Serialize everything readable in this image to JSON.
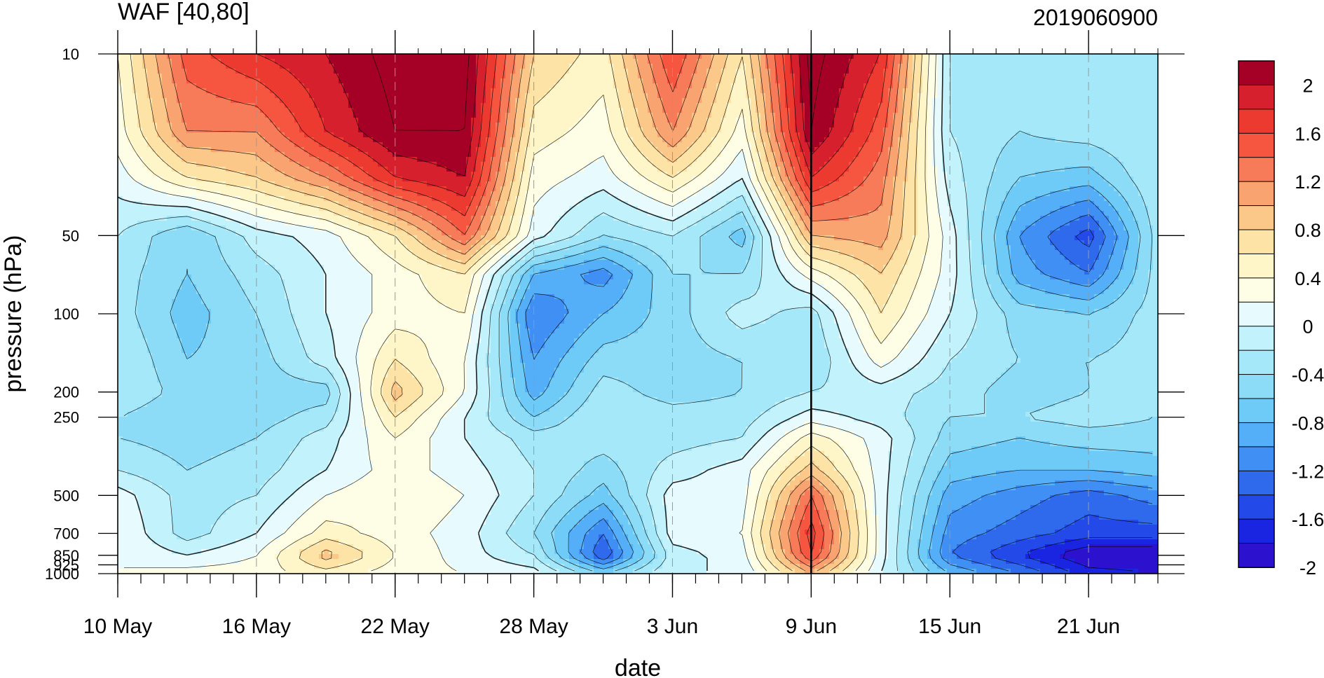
{
  "chart_data": {
    "type": "heatmap",
    "subtype": "filled-contour time-pressure section",
    "title": "WAF [40,80]",
    "right_title": "2019060900",
    "xlabel": "date",
    "ylabel": "pressure (hPa)",
    "x_tick_labels": [
      "10 May",
      "16 May",
      "22 May",
      "28 May",
      "3 Jun",
      "9 Jun",
      "15 Jun",
      "21 Jun"
    ],
    "x_tick_dates": [
      "2019-05-10",
      "2019-05-16",
      "2019-05-22",
      "2019-05-28",
      "2019-06-03",
      "2019-06-09",
      "2019-06-15",
      "2019-06-21"
    ],
    "x_range": [
      "2019-05-10",
      "2019-06-24"
    ],
    "y_tick_labels": [
      "10",
      "50",
      "100",
      "200",
      "250",
      "500",
      "700",
      "850",
      "925",
      "1000"
    ],
    "y_tick_values": [
      10,
      50,
      100,
      200,
      250,
      500,
      700,
      850,
      925,
      1000
    ],
    "y_range": [
      1000,
      10
    ],
    "y_scale": "log (pressure, top = 10 hPa)",
    "analysis_date_marker": "2019-06-09",
    "colorbar": {
      "labels": [
        "2",
        "1.6",
        "1.2",
        "0.8",
        "0.4",
        "0",
        "-0.4",
        "-0.8",
        "-1.2",
        "-1.6",
        "-2"
      ],
      "label_values": [
        2,
        1.6,
        1.2,
        0.8,
        0.4,
        0,
        -0.4,
        -0.8,
        -1.2,
        -1.6,
        -2
      ],
      "levels": [
        2.2,
        2.0,
        1.8,
        1.6,
        1.4,
        1.2,
        1.0,
        0.8,
        0.6,
        0.4,
        0.2,
        0,
        -0.2,
        -0.4,
        -0.6,
        -0.8,
        -1.0,
        -1.2,
        -1.4,
        -1.6,
        -1.8,
        -2.0,
        -2.2
      ],
      "colors": [
        "#a50026",
        "#d6202e",
        "#ec3a31",
        "#f6553f",
        "#f77b58",
        "#f9a371",
        "#fcc88a",
        "#fde3a6",
        "#fef6c9",
        "#fefde6",
        "#e7fafd",
        "#c2f2fb",
        "#a5e8f9",
        "#8cdcf7",
        "#6ecaf6",
        "#54aef8",
        "#3f8ff4",
        "#2f6aed",
        "#234ae8",
        "#1a25e1",
        "#2c11cf"
      ]
    },
    "field": {
      "description": "approximate WAF values digitised from the plotted contours",
      "dates": [
        "2019-05-10",
        "2019-05-13",
        "2019-05-16",
        "2019-05-19",
        "2019-05-22",
        "2019-05-25",
        "2019-05-28",
        "2019-05-31",
        "2019-06-03",
        "2019-06-06",
        "2019-06-09",
        "2019-06-12",
        "2019-06-15",
        "2019-06-18",
        "2019-06-21",
        "2019-06-24"
      ],
      "pressure_levels": [
        10,
        20,
        30,
        50,
        70,
        100,
        150,
        200,
        250,
        300,
        400,
        500,
        700,
        850,
        1000
      ],
      "values": [
        [
          0.4,
          1.5,
          1.8,
          2.0,
          2.3,
          2.3,
          0.8,
          0.5,
          1.6,
          0.6,
          2.3,
          1.8,
          -0.2,
          -0.3,
          -0.2,
          -0.2
        ],
        [
          0.3,
          1.2,
          1.2,
          1.8,
          2.2,
          2.2,
          0.5,
          0.3,
          1.2,
          0.3,
          2.2,
          1.5,
          -0.2,
          -0.4,
          -0.3,
          -0.2
        ],
        [
          0.1,
          0.6,
          0.8,
          1.2,
          1.8,
          2.0,
          0.3,
          0.1,
          0.6,
          0.0,
          1.8,
          1.3,
          -0.1,
          -0.6,
          -0.7,
          -0.2
        ],
        [
          -0.2,
          -0.6,
          -0.1,
          0.1,
          0.6,
          1.4,
          0.1,
          -0.4,
          -0.2,
          -0.7,
          1.0,
          1.1,
          0.1,
          -1.0,
          -1.5,
          -0.3
        ],
        [
          -0.3,
          -0.6,
          -0.3,
          0.0,
          0.3,
          0.6,
          -0.8,
          -1.1,
          -0.4,
          -0.4,
          0.3,
          0.8,
          0.1,
          -0.9,
          -1.2,
          -0.3
        ],
        [
          -0.3,
          -0.7,
          -0.4,
          0.0,
          0.3,
          0.4,
          -1.2,
          -0.8,
          -0.5,
          -0.1,
          -0.3,
          0.6,
          0.0,
          -0.5,
          -0.6,
          -0.3
        ],
        [
          -0.2,
          -0.6,
          -0.5,
          -0.1,
          0.6,
          0.2,
          -1.0,
          -0.5,
          -0.5,
          -0.4,
          -0.4,
          0.3,
          -0.2,
          -0.4,
          -0.4,
          -0.3
        ],
        [
          -0.2,
          -0.5,
          -0.5,
          -0.5,
          0.9,
          0.2,
          -0.9,
          -0.3,
          -0.5,
          -0.4,
          -0.2,
          -0.1,
          -0.3,
          -0.5,
          -0.4,
          -0.4
        ],
        [
          -0.4,
          -0.6,
          -0.5,
          -0.3,
          0.6,
          0.0,
          -0.6,
          -0.2,
          -0.3,
          -0.3,
          0.1,
          -0.1,
          -0.4,
          -0.4,
          -0.3,
          -0.4
        ],
        [
          -0.4,
          -0.5,
          -0.4,
          -0.1,
          0.4,
          0.0,
          -0.3,
          -0.3,
          -0.3,
          -0.2,
          0.5,
          0.1,
          -0.5,
          -0.6,
          -0.5,
          -0.5
        ],
        [
          -0.2,
          -0.4,
          -0.3,
          0.0,
          0.3,
          0.1,
          -0.2,
          -0.5,
          -0.1,
          0.1,
          0.9,
          0.1,
          -0.7,
          -0.8,
          -0.8,
          -0.7
        ],
        [
          0.1,
          -0.3,
          -0.2,
          0.2,
          0.4,
          0.2,
          -0.2,
          -0.7,
          0.1,
          0.1,
          1.4,
          0.1,
          -0.9,
          -1.1,
          -1.3,
          -1.1
        ],
        [
          0.2,
          -0.3,
          0.0,
          0.5,
          0.3,
          0.1,
          -0.4,
          -1.2,
          0.1,
          0.2,
          1.7,
          0.1,
          -1.1,
          -1.3,
          -1.5,
          -1.5
        ],
        [
          0.2,
          0.0,
          0.2,
          0.9,
          0.4,
          0.1,
          -0.2,
          -1.4,
          -0.1,
          0.1,
          1.6,
          0.1,
          -1.2,
          -1.6,
          -2.0,
          -2.0
        ],
        [
          0.2,
          0.3,
          0.3,
          0.5,
          0.3,
          0.2,
          0.1,
          -0.6,
          0.0,
          0.0,
          1.0,
          0.0,
          -0.8,
          -1.2,
          -1.7,
          -1.8
        ]
      ]
    }
  }
}
